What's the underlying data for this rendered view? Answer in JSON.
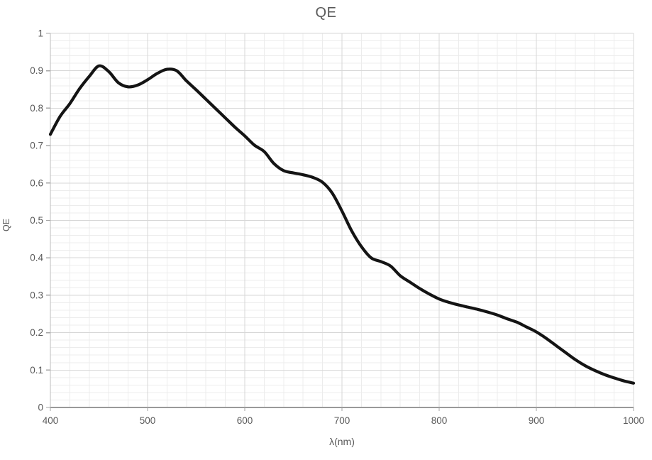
{
  "chart_data": {
    "type": "line",
    "title": "QE",
    "xlabel": "λ(nm)",
    "ylabel": "QE",
    "xlim": [
      400,
      1000
    ],
    "ylim": [
      0,
      1
    ],
    "x_major_step": 100,
    "x_minor_step": 20,
    "y_major_step": 0.1,
    "y_minor_step": 0.02,
    "x_tick_labels": [
      "400",
      "500",
      "600",
      "700",
      "800",
      "900",
      "1000"
    ],
    "y_tick_labels": [
      "0",
      "0.1",
      "0.2",
      "0.3",
      "0.4",
      "0.5",
      "0.6",
      "0.7",
      "0.8",
      "0.9",
      "1"
    ],
    "grid": "major-and-minor",
    "legend_position": "none",
    "smooth": true,
    "series": [
      {
        "name": "QE",
        "x": [
          400,
          410,
          420,
          430,
          440,
          450,
          460,
          470,
          480,
          490,
          500,
          510,
          520,
          530,
          540,
          550,
          560,
          570,
          580,
          590,
          600,
          610,
          620,
          630,
          640,
          650,
          660,
          670,
          680,
          690,
          700,
          710,
          720,
          730,
          740,
          750,
          760,
          770,
          780,
          790,
          800,
          810,
          820,
          830,
          840,
          850,
          860,
          870,
          880,
          890,
          900,
          910,
          920,
          930,
          940,
          950,
          960,
          970,
          980,
          990,
          1000
        ],
        "y": [
          0.73,
          0.778,
          0.812,
          0.852,
          0.885,
          0.913,
          0.898,
          0.868,
          0.857,
          0.862,
          0.876,
          0.893,
          0.904,
          0.9,
          0.873,
          0.849,
          0.824,
          0.799,
          0.774,
          0.749,
          0.726,
          0.701,
          0.684,
          0.652,
          0.633,
          0.627,
          0.622,
          0.615,
          0.602,
          0.573,
          0.525,
          0.472,
          0.43,
          0.4,
          0.39,
          0.378,
          0.352,
          0.335,
          0.318,
          0.303,
          0.29,
          0.281,
          0.274,
          0.268,
          0.262,
          0.255,
          0.247,
          0.237,
          0.228,
          0.215,
          0.202,
          0.185,
          0.166,
          0.147,
          0.128,
          0.112,
          0.099,
          0.088,
          0.079,
          0.071,
          0.065
        ]
      }
    ],
    "colors": {
      "line": "#141414",
      "minor_grid": "#ececec",
      "major_grid": "#d7d7d7",
      "axis_line": "#9a9a9a",
      "tick_mark": "#a6a6a6",
      "label_text": "#595959",
      "background": "#ffffff"
    }
  }
}
